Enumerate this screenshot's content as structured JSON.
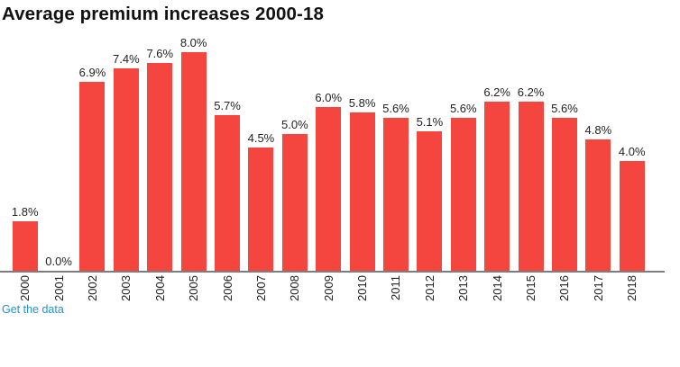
{
  "title": "Average premium increases 2000-18",
  "footer": {
    "link_label": "Get the data"
  },
  "colors": {
    "bar": "#f4453e",
    "axis": "#7d7d7d",
    "text": "#222222",
    "link": "#2493d1"
  },
  "chart_data": {
    "type": "bar",
    "title": "Average premium increases 2000-18",
    "categories": [
      "2000",
      "2001",
      "2002",
      "2003",
      "2004",
      "2005",
      "2006",
      "2007",
      "2008",
      "2009",
      "2010",
      "2011",
      "2012",
      "2013",
      "2014",
      "2015",
      "2016",
      "2017",
      "2018"
    ],
    "values": [
      1.8,
      0.0,
      6.9,
      7.4,
      7.6,
      8.0,
      5.7,
      4.5,
      5.0,
      6.0,
      5.8,
      5.6,
      5.1,
      5.6,
      6.2,
      6.2,
      5.6,
      4.8,
      4.0
    ],
    "value_labels": [
      "1.8%",
      "0.0%",
      "6.9%",
      "7.4%",
      "7.6%",
      "8.0%",
      "5.7%",
      "4.5%",
      "5.0%",
      "6.0%",
      "5.8%",
      "5.6%",
      "5.1%",
      "5.6%",
      "6.2%",
      "6.2%",
      "5.6%",
      "4.8%",
      "4.0%"
    ],
    "unit": "%",
    "xlabel": "",
    "ylabel": "",
    "ylim": [
      0,
      8.8
    ],
    "grid": false,
    "legend": false,
    "y_axis_visible": false,
    "x_tick_rotation": -90,
    "value_labels_position": "above-bars"
  }
}
